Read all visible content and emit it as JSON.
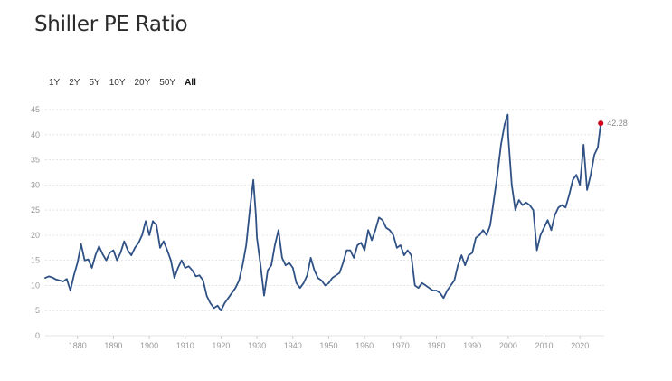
{
  "header": {
    "title": "Shiller PE Ratio"
  },
  "range_buttons": [
    {
      "label": "1Y",
      "active": false
    },
    {
      "label": "2Y",
      "active": false
    },
    {
      "label": "5Y",
      "active": false
    },
    {
      "label": "10Y",
      "active": false
    },
    {
      "label": "20Y",
      "active": false
    },
    {
      "label": "50Y",
      "active": false
    },
    {
      "label": "All",
      "active": true
    }
  ],
  "colors": {
    "line": "#2f5185",
    "last_point": "#d0021b",
    "grid": "#e3e3e3",
    "tick": "#999999"
  },
  "chart_data": {
    "type": "line",
    "title": "Shiller PE Ratio",
    "xlabel": "",
    "ylabel": "",
    "xlim": [
      1871,
      2026
    ],
    "ylim": [
      0,
      45
    ],
    "x_ticks": [
      1880,
      1890,
      1900,
      1910,
      1920,
      1930,
      1940,
      1950,
      1960,
      1970,
      1980,
      1990,
      2000,
      2010,
      2020
    ],
    "y_ticks": [
      0,
      5,
      10,
      15,
      20,
      25,
      30,
      35,
      40,
      45
    ],
    "grid": true,
    "last_value_label": "42.28",
    "series": [
      {
        "x": [
          1871,
          1872,
          1873,
          1874,
          1875,
          1876,
          1877,
          1878,
          1879,
          1880,
          1881,
          1882,
          1883,
          1884,
          1885,
          1886,
          1887,
          1888,
          1889,
          1890,
          1891,
          1892,
          1893,
          1894,
          1895,
          1896,
          1897,
          1898,
          1899,
          1900,
          1901,
          1902,
          1903,
          1904,
          1905,
          1906,
          1907,
          1908,
          1909,
          1910,
          1911,
          1912,
          1913,
          1914,
          1915,
          1916,
          1917,
          1918,
          1919,
          1920,
          1921,
          1922,
          1923,
          1924,
          1925,
          1926,
          1927,
          1928,
          1929,
          1929.7,
          1930,
          1931,
          1932,
          1933,
          1934,
          1935,
          1936,
          1937,
          1938,
          1939,
          1940,
          1941,
          1942,
          1943,
          1944,
          1945,
          1946,
          1947,
          1948,
          1949,
          1950,
          1951,
          1952,
          1953,
          1954,
          1955,
          1956,
          1957,
          1958,
          1959,
          1960,
          1961,
          1962,
          1963,
          1964,
          1965,
          1966,
          1967,
          1968,
          1969,
          1970,
          1971,
          1972,
          1973,
          1974,
          1975,
          1976,
          1977,
          1978,
          1979,
          1980,
          1981,
          1982,
          1983,
          1984,
          1985,
          1986,
          1987,
          1988,
          1989,
          1990,
          1991,
          1992,
          1993,
          1994,
          1995,
          1996,
          1997,
          1998,
          1999,
          1999.9,
          2000,
          2001,
          2002,
          2003,
          2004,
          2005,
          2006,
          2007,
          2008,
          2009,
          2010,
          2011,
          2012,
          2013,
          2014,
          2015,
          2016,
          2017,
          2018,
          2019,
          2020,
          2021,
          2022,
          2023,
          2024,
          2025,
          2025.8
        ],
        "values": [
          11.5,
          11.8,
          11.6,
          11.2,
          11.0,
          10.8,
          11.3,
          9.0,
          12.0,
          14.5,
          18.2,
          15.0,
          15.2,
          13.5,
          16.0,
          17.8,
          16.2,
          15.0,
          16.5,
          17.0,
          15.0,
          16.5,
          18.8,
          17.0,
          16.0,
          17.5,
          18.5,
          20.0,
          22.8,
          20.0,
          22.8,
          22.0,
          17.5,
          18.8,
          17.0,
          15.0,
          11.5,
          13.5,
          15.0,
          13.5,
          13.8,
          13.0,
          11.8,
          12.0,
          11.0,
          8.0,
          6.5,
          5.5,
          6.0,
          5.0,
          6.5,
          7.5,
          8.5,
          9.5,
          11.0,
          14.0,
          18.0,
          25.0,
          31.0,
          24.0,
          19.5,
          14.0,
          8.0,
          13.0,
          14.0,
          18.0,
          21.0,
          15.5,
          14.0,
          14.5,
          13.5,
          10.5,
          9.5,
          10.5,
          12.0,
          15.5,
          13.0,
          11.5,
          11.0,
          10.0,
          10.5,
          11.5,
          12.0,
          12.5,
          14.5,
          17.0,
          17.0,
          15.5,
          18.0,
          18.5,
          17.0,
          21.0,
          19.0,
          21.0,
          23.5,
          23.0,
          21.5,
          21.0,
          20.0,
          17.5,
          18.0,
          16.0,
          17.0,
          16.0,
          10.0,
          9.5,
          10.5,
          10.0,
          9.5,
          9.0,
          9.0,
          8.5,
          7.5,
          9.0,
          10.0,
          11.0,
          14.0,
          16.0,
          14.0,
          16.0,
          16.5,
          19.5,
          20.0,
          21.0,
          20.0,
          22.0,
          27.0,
          32.0,
          38.0,
          42.0,
          44.0,
          40.0,
          30.0,
          25.0,
          27.0,
          26.0,
          26.5,
          26.0,
          25.0,
          17.0,
          20.0,
          21.5,
          23.0,
          21.0,
          24.0,
          25.5,
          26.0,
          25.5,
          28.0,
          31.0,
          32.0,
          30.0,
          38.0,
          29.0,
          32.0,
          36.0,
          37.5,
          42.28
        ]
      }
    ]
  }
}
